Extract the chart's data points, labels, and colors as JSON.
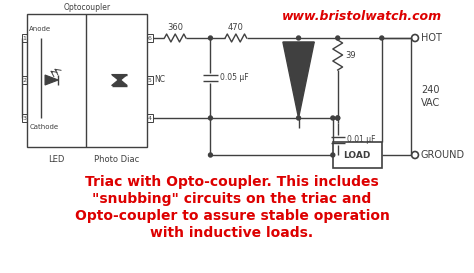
{
  "bg_color": "#ffffff",
  "circuit_color": "#404040",
  "red_color": "#dd0000",
  "url_text": "www.bristolwatch.com",
  "caption_lines": [
    "Triac with Opto-coupler. This includes",
    "\"snubbing\" circuits on the triac and",
    "Opto-coupler to assure stable operation",
    "with inductive loads."
  ],
  "labels": {
    "optocoupler": "Optocoupler",
    "anode": "Anode",
    "cathode": "Cathode",
    "led": "LED",
    "photo_diac": "Photo Diac",
    "nc": "NC",
    "r1": "360",
    "r2": "470",
    "r3": "39",
    "c1": "0.05 μF",
    "c2": "0.01 μF",
    "hot": "HOT",
    "ground": "GROUND",
    "vac": "240\nVAC",
    "load": "LOAD",
    "pin1": "1",
    "pin2": "2",
    "pin3": "3",
    "pin4": "4",
    "pin5": "5",
    "pin6": "6"
  }
}
